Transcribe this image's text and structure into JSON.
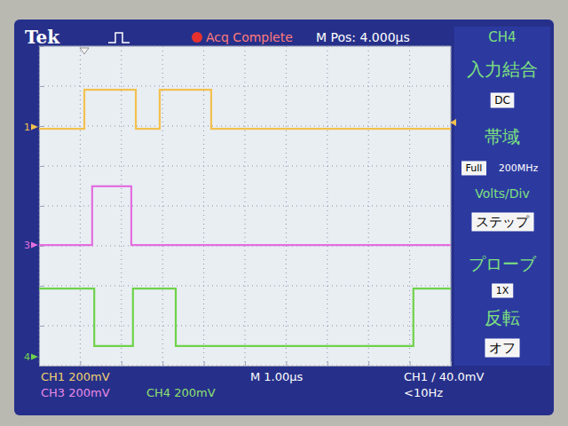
{
  "chart_data": {
    "type": "line",
    "xlim": [
      0,
      10
    ],
    "ylim": [
      -4,
      4
    ],
    "xticks": [
      0,
      1,
      2,
      3,
      4,
      5,
      6,
      7,
      8,
      9,
      10
    ],
    "yticks": [
      -4,
      -3,
      -2,
      -1,
      0,
      1,
      2,
      3,
      4
    ],
    "grid": true,
    "tick_labels": false,
    "series": [
      {
        "name": "1",
        "color": "#f2c14e",
        "offset": 1.98,
        "x": [
          0,
          1.1,
          1.1,
          2.35,
          2.35,
          2.93,
          2.93,
          4.18,
          4.18,
          10
        ],
        "values": [
          1.93,
          1.93,
          2.91,
          2.91,
          1.93,
          1.93,
          2.91,
          2.91,
          1.93,
          1.93
        ]
      },
      {
        "name": "3",
        "color": "#e36fe0",
        "offset": -0.98,
        "x": [
          0,
          1.29,
          1.29,
          2.24,
          2.24,
          10
        ],
        "values": [
          -0.98,
          -0.98,
          0.49,
          0.49,
          -0.98,
          -0.98
        ]
      },
      {
        "name": "4",
        "color": "#6fd24a",
        "offset": -3.78,
        "x": [
          0,
          1.34,
          1.34,
          2.28,
          2.28,
          3.32,
          3.32,
          9.09,
          9.09,
          10
        ],
        "values": [
          -2.07,
          -2.07,
          -3.51,
          -3.51,
          -2.07,
          -2.07,
          -3.51,
          -3.51,
          -2.07,
          -2.07
        ]
      }
    ],
    "trigger": {
      "time": 1.1,
      "level": 2.09
    },
    "annotations": [
      "Tek",
      "Acq Complete",
      "M Pos: 4.000µs",
      "CH4",
      "入力結合",
      "DC",
      "帯域",
      "Full",
      "200MHz",
      "Volts/Div",
      "ステップ",
      "プローブ",
      "1X",
      "反転",
      "オフ",
      "CH1 200mV",
      "CH3 200mV",
      "CH4 200mV",
      "M 1.00µs",
      "CH1 / 40.0mV",
      "<10Hz"
    ]
  }
}
